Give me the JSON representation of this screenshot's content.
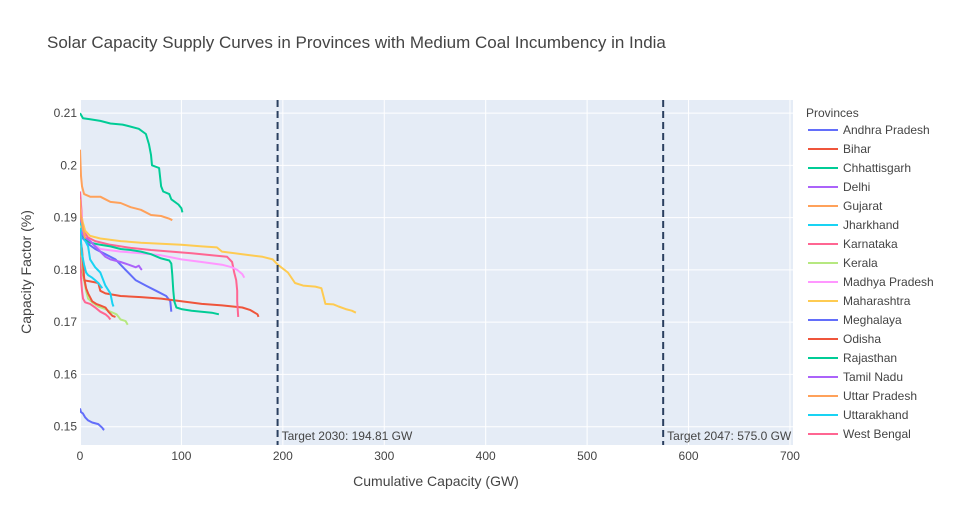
{
  "chart_data": {
    "type": "line",
    "title": "Solar Capacity Supply Curves in Provinces with Medium Coal Incumbency in India",
    "xlabel": "Cumulative Capacity (GW)",
    "ylabel": "Capacity Factor (%)",
    "xlim": [
      0,
      703
    ],
    "ylim": [
      0.1465,
      0.2125
    ],
    "x_ticks": [
      0,
      100,
      200,
      300,
      400,
      500,
      600,
      700
    ],
    "x_tick_labels": [
      "0",
      "100",
      "200",
      "300",
      "400",
      "500",
      "600",
      "700"
    ],
    "y_ticks": [
      0.15,
      0.16,
      0.17,
      0.18,
      0.19,
      0.2,
      0.21
    ],
    "y_tick_labels": [
      "0.15",
      "0.16",
      "0.17",
      "0.18",
      "0.19",
      "0.2",
      "0.21"
    ],
    "grid": true,
    "legend_title": "Provinces",
    "legend_position": "right",
    "vlines": [
      {
        "x": 194.81,
        "label": "Target 2030: 194.81 GW"
      },
      {
        "x": 575.0,
        "label": "Target 2047: 575.0 GW"
      }
    ],
    "series": [
      {
        "name": "Andhra Pradesh",
        "color": "#636efa",
        "points": [
          [
            0,
            0.188
          ],
          [
            3,
            0.186
          ],
          [
            8,
            0.185
          ],
          [
            15,
            0.184
          ],
          [
            25,
            0.183
          ],
          [
            35,
            0.182
          ],
          [
            45,
            0.18
          ],
          [
            55,
            0.178
          ],
          [
            65,
            0.177
          ],
          [
            75,
            0.176
          ],
          [
            85,
            0.175
          ],
          [
            89,
            0.174
          ],
          [
            90,
            0.172
          ]
        ]
      },
      {
        "name": "Bihar",
        "color": "#ef553b",
        "points": [
          [
            0,
            0.186
          ],
          [
            2,
            0.18
          ],
          [
            4,
            0.178
          ],
          [
            10,
            0.1778
          ],
          [
            18,
            0.1775
          ],
          [
            20,
            0.176
          ],
          [
            25,
            0.1755
          ],
          [
            40,
            0.175
          ],
          [
            60,
            0.1748
          ],
          [
            80,
            0.1745
          ],
          [
            100,
            0.174
          ],
          [
            120,
            0.1735
          ],
          [
            140,
            0.1732
          ],
          [
            160,
            0.1728
          ],
          [
            168,
            0.1723
          ],
          [
            175,
            0.1715
          ],
          [
            176,
            0.171
          ]
        ]
      },
      {
        "name": "Chhattisgarh",
        "color": "#00cc96",
        "points": [
          [
            0,
            0.21
          ],
          [
            3,
            0.209
          ],
          [
            10,
            0.2088
          ],
          [
            20,
            0.2085
          ],
          [
            30,
            0.208
          ],
          [
            42,
            0.2078
          ],
          [
            48,
            0.2075
          ],
          [
            58,
            0.207
          ],
          [
            65,
            0.206
          ],
          [
            68,
            0.204
          ],
          [
            70,
            0.202
          ],
          [
            71,
            0.2
          ],
          [
            78,
            0.1995
          ],
          [
            80,
            0.196
          ],
          [
            82,
            0.195
          ],
          [
            88,
            0.1945
          ],
          [
            90,
            0.1935
          ],
          [
            97,
            0.1925
          ],
          [
            100,
            0.1918
          ],
          [
            101,
            0.191
          ]
        ]
      },
      {
        "name": "Delhi",
        "color": "#ab63fa",
        "points": [
          [
            0,
            0.192
          ],
          [
            0.4,
            0.19
          ],
          [
            0.8,
            0.187
          ],
          [
            1,
            0.185
          ]
        ]
      },
      {
        "name": "Gujarat",
        "color": "#ffa15a",
        "points": [
          [
            0,
            0.203
          ],
          [
            1,
            0.198
          ],
          [
            2,
            0.196
          ],
          [
            4,
            0.1945
          ],
          [
            10,
            0.194
          ],
          [
            20,
            0.194
          ],
          [
            25,
            0.1935
          ],
          [
            30,
            0.193
          ],
          [
            40,
            0.1928
          ],
          [
            50,
            0.192
          ],
          [
            60,
            0.1915
          ],
          [
            70,
            0.1905
          ],
          [
            80,
            0.1903
          ],
          [
            88,
            0.1898
          ],
          [
            91,
            0.1895
          ]
        ]
      },
      {
        "name": "Jharkhand",
        "color": "#19d3f3",
        "points": [
          [
            0,
            0.189
          ],
          [
            2,
            0.1875
          ],
          [
            4,
            0.186
          ],
          [
            8,
            0.1845
          ],
          [
            10,
            0.182
          ],
          [
            15,
            0.1805
          ],
          [
            20,
            0.1795
          ],
          [
            25,
            0.177
          ],
          [
            30,
            0.1755
          ],
          [
            32,
            0.1735
          ],
          [
            33,
            0.173
          ]
        ]
      },
      {
        "name": "Karnataka",
        "color": "#ff6692",
        "points": [
          [
            0,
            0.195
          ],
          [
            3,
            0.1875
          ],
          [
            8,
            0.1862
          ],
          [
            15,
            0.1855
          ],
          [
            30,
            0.1848
          ],
          [
            50,
            0.1842
          ],
          [
            70,
            0.1838
          ],
          [
            90,
            0.1835
          ],
          [
            110,
            0.1832
          ],
          [
            130,
            0.1828
          ],
          [
            145,
            0.1825
          ],
          [
            150,
            0.1815
          ],
          [
            152,
            0.1795
          ],
          [
            154,
            0.178
          ],
          [
            155,
            0.176
          ],
          [
            155,
            0.174
          ],
          [
            156,
            0.171
          ]
        ]
      },
      {
        "name": "Kerala",
        "color": "#b6e880",
        "points": [
          [
            0,
            0.1885
          ],
          [
            2,
            0.181
          ],
          [
            4,
            0.178
          ],
          [
            6,
            0.176
          ],
          [
            8,
            0.1745
          ],
          [
            12,
            0.1738
          ],
          [
            18,
            0.173
          ],
          [
            25,
            0.1725
          ],
          [
            30,
            0.172
          ],
          [
            36,
            0.1715
          ],
          [
            40,
            0.1705
          ],
          [
            45,
            0.1702
          ],
          [
            47,
            0.1695
          ]
        ]
      },
      {
        "name": "Madhya Pradesh",
        "color": "#ff97ff",
        "points": [
          [
            0,
            0.193
          ],
          [
            3,
            0.188
          ],
          [
            5,
            0.186
          ],
          [
            10,
            0.1855
          ],
          [
            20,
            0.184
          ],
          [
            40,
            0.1835
          ],
          [
            60,
            0.1832
          ],
          [
            80,
            0.1828
          ],
          [
            100,
            0.182
          ],
          [
            120,
            0.1815
          ],
          [
            140,
            0.181
          ],
          [
            150,
            0.1805
          ],
          [
            155,
            0.18
          ],
          [
            160,
            0.1792
          ],
          [
            162,
            0.1785
          ]
        ]
      },
      {
        "name": "Maharashtra",
        "color": "#fecb52",
        "points": [
          [
            0,
            0.191
          ],
          [
            5,
            0.1875
          ],
          [
            10,
            0.1865
          ],
          [
            20,
            0.186
          ],
          [
            40,
            0.1855
          ],
          [
            60,
            0.1852
          ],
          [
            80,
            0.185
          ],
          [
            100,
            0.1848
          ],
          [
            120,
            0.1845
          ],
          [
            135,
            0.1843
          ],
          [
            140,
            0.1835
          ],
          [
            160,
            0.183
          ],
          [
            180,
            0.1825
          ],
          [
            190,
            0.182
          ],
          [
            195,
            0.181
          ],
          [
            205,
            0.1795
          ],
          [
            212,
            0.1775
          ],
          [
            220,
            0.177
          ],
          [
            232,
            0.1768
          ],
          [
            238,
            0.1765
          ],
          [
            240,
            0.175
          ],
          [
            242,
            0.1735
          ],
          [
            250,
            0.1734
          ],
          [
            255,
            0.173
          ],
          [
            262,
            0.1725
          ],
          [
            268,
            0.1722
          ],
          [
            272,
            0.1718
          ]
        ]
      },
      {
        "name": "Meghalaya",
        "color": "#636efa",
        "points": [
          [
            0,
            0.1535
          ],
          [
            1,
            0.1528
          ],
          [
            3,
            0.1525
          ],
          [
            5,
            0.1518
          ],
          [
            8,
            0.1512
          ],
          [
            12,
            0.1508
          ],
          [
            18,
            0.1505
          ],
          [
            22,
            0.1498
          ],
          [
            23,
            0.1495
          ],
          [
            24,
            0.1494
          ]
        ]
      },
      {
        "name": "Odisha",
        "color": "#ef553b",
        "points": [
          [
            0,
            0.186
          ],
          [
            2,
            0.184
          ],
          [
            4,
            0.1785
          ],
          [
            6,
            0.1765
          ],
          [
            8,
            0.1755
          ],
          [
            12,
            0.174
          ],
          [
            16,
            0.1735
          ],
          [
            20,
            0.1732
          ],
          [
            25,
            0.1728
          ],
          [
            28,
            0.172
          ],
          [
            32,
            0.1712
          ],
          [
            35,
            0.171
          ]
        ]
      },
      {
        "name": "Rajasthan",
        "color": "#00cc96",
        "points": [
          [
            0,
            0.1875
          ],
          [
            5,
            0.186
          ],
          [
            10,
            0.1852
          ],
          [
            20,
            0.1848
          ],
          [
            30,
            0.1845
          ],
          [
            40,
            0.184
          ],
          [
            50,
            0.1838
          ],
          [
            60,
            0.1835
          ],
          [
            70,
            0.183
          ],
          [
            80,
            0.1822
          ],
          [
            88,
            0.1818
          ],
          [
            90,
            0.1812
          ],
          [
            91,
            0.179
          ],
          [
            92,
            0.176
          ],
          [
            93,
            0.174
          ],
          [
            95,
            0.1728
          ],
          [
            100,
            0.1725
          ],
          [
            110,
            0.1722
          ],
          [
            120,
            0.172
          ],
          [
            130,
            0.1718
          ],
          [
            137,
            0.1715
          ]
        ]
      },
      {
        "name": "Tamil Nadu",
        "color": "#ab63fa",
        "points": [
          [
            0,
            0.1875
          ],
          [
            5,
            0.1862
          ],
          [
            10,
            0.1855
          ],
          [
            15,
            0.1845
          ],
          [
            20,
            0.1835
          ],
          [
            25,
            0.1825
          ],
          [
            30,
            0.182
          ],
          [
            40,
            0.1815
          ],
          [
            48,
            0.181
          ],
          [
            55,
            0.1805
          ],
          [
            58,
            0.1808
          ],
          [
            60,
            0.1802
          ],
          [
            61,
            0.18
          ]
        ]
      },
      {
        "name": "Uttar Pradesh",
        "color": "#ffa15a",
        "points": [
          [
            0,
            0.1935
          ],
          [
            1,
            0.19
          ],
          [
            2,
            0.189
          ],
          [
            3,
            0.188
          ],
          [
            4,
            0.187
          ],
          [
            5,
            0.186
          ]
        ]
      },
      {
        "name": "Uttarakhand",
        "color": "#19d3f3",
        "points": [
          [
            0,
            0.188
          ],
          [
            2,
            0.183
          ],
          [
            4,
            0.181
          ],
          [
            6,
            0.1795
          ],
          [
            8,
            0.179
          ],
          [
            12,
            0.1785
          ],
          [
            15,
            0.178
          ],
          [
            18,
            0.1775
          ],
          [
            20,
            0.177
          ],
          [
            22,
            0.1765
          ]
        ]
      },
      {
        "name": "West Bengal",
        "color": "#ff6692",
        "points": [
          [
            0,
            0.1825
          ],
          [
            1,
            0.1785
          ],
          [
            2,
            0.176
          ],
          [
            3,
            0.1745
          ],
          [
            5,
            0.1738
          ],
          [
            10,
            0.1735
          ],
          [
            15,
            0.1728
          ],
          [
            20,
            0.172
          ],
          [
            25,
            0.1715
          ],
          [
            28,
            0.171
          ],
          [
            30,
            0.1705
          ]
        ]
      }
    ]
  }
}
